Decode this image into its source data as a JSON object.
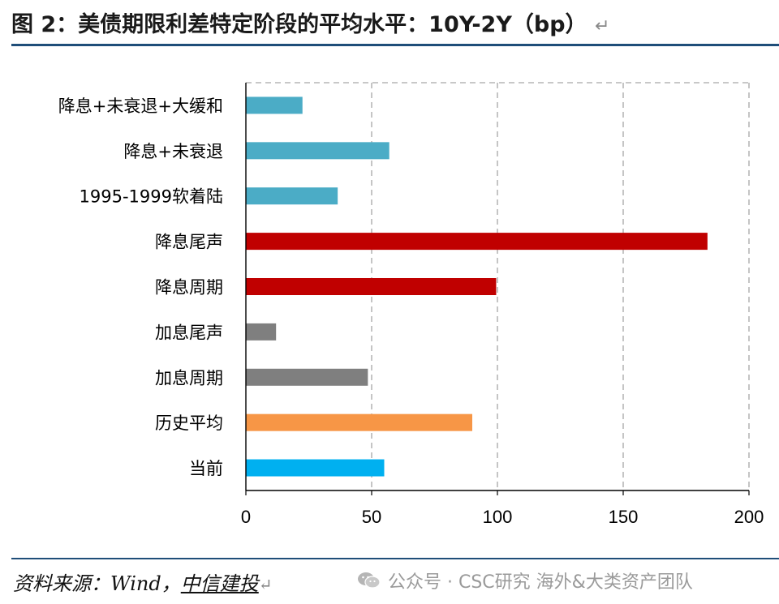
{
  "header": {
    "title": "图 2：美债期限利差特定阶段的平均水平：10Y-2Y（bp）",
    "return_mark": "↵"
  },
  "chart_data": {
    "type": "bar",
    "orientation": "horizontal",
    "categories": [
      "降息+未衰退+大缓和",
      "降息+未衰退",
      "1995-1999软着陆",
      "降息尾声",
      "降息周期",
      "加息尾声",
      "加息周期",
      "历史平均",
      "当前"
    ],
    "values": [
      22.5,
      57,
      36.5,
      183.5,
      99.5,
      12,
      48.5,
      90,
      55
    ],
    "colors": [
      "#4bacc6",
      "#4bacc6",
      "#4bacc6",
      "#c00000",
      "#c00000",
      "#7f7f7f",
      "#7f7f7f",
      "#f79646",
      "#00b0f0"
    ],
    "xlim": [
      0,
      200
    ],
    "xticks": [
      "0",
      "50",
      "100",
      "150",
      "200"
    ],
    "grid": "vertical dashed",
    "legend": "none"
  },
  "footer": {
    "source_label": "资料来源：Wind，",
    "source_org": "中信建投",
    "return_mark": "↵",
    "watermark": "公众号 · CSC研究 海外&大类资产团队",
    "watermark_icon": "wechat-icon"
  }
}
